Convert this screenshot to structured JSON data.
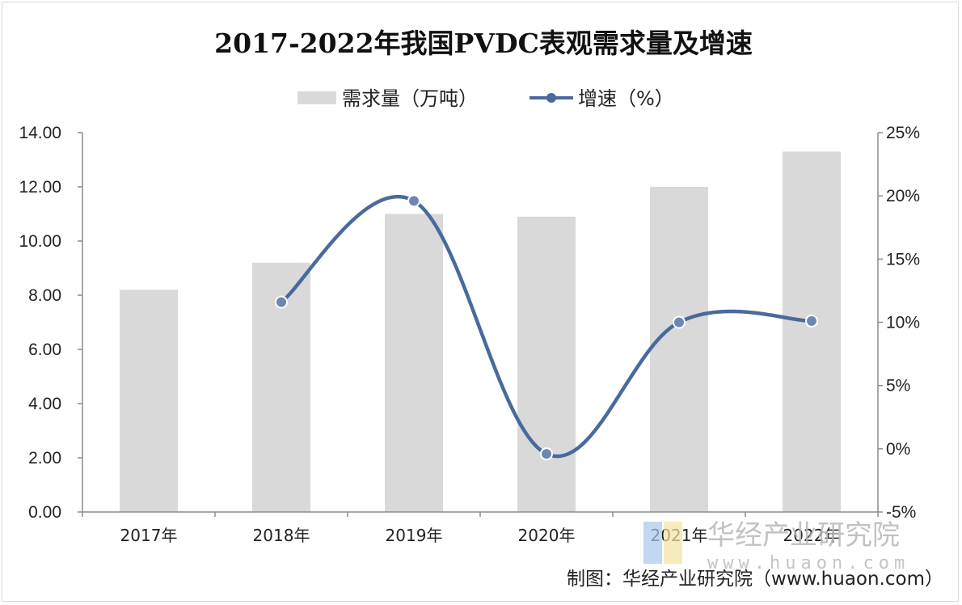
{
  "chart_data": {
    "type": "bar",
    "title": "2017-2022年我国PVDC表观需求量及增速",
    "categories": [
      "2017年",
      "2018年",
      "2019年",
      "2020年",
      "2021年",
      "2022年"
    ],
    "series": [
      {
        "name": "需求量（万吨）",
        "kind": "bar",
        "axis": "left",
        "values": [
          8.2,
          9.2,
          11.0,
          10.9,
          12.0,
          13.3
        ],
        "color": "#d9d9d9"
      },
      {
        "name": "增速（%）",
        "kind": "line",
        "axis": "right",
        "smooth": true,
        "values": [
          null,
          11.6,
          19.6,
          -0.4,
          10.0,
          10.1
        ],
        "color": "#4a6a9c"
      }
    ],
    "y_left": {
      "ylim": [
        0,
        14
      ],
      "ticks": [
        "0.00",
        "2.00",
        "4.00",
        "6.00",
        "8.00",
        "10.00",
        "12.00",
        "14.00"
      ]
    },
    "y_right": {
      "ylim": [
        -5,
        25
      ],
      "ticks": [
        "-5%",
        "0%",
        "5%",
        "10%",
        "15%",
        "20%",
        "25%"
      ]
    },
    "legend_position": "top-center",
    "grid": false
  },
  "source_note": "制图：华经产业研究院（www.huaon.com）",
  "watermark": {
    "name": "华经产业研究院",
    "url": "www.huaon.com"
  }
}
